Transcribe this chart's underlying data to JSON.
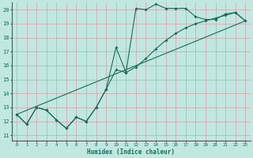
{
  "xlabel": "Humidex (Indice chaleur)",
  "bg_color": "#c0e8e0",
  "grid_color": "#d4a0a8",
  "line_color": "#1a6b5a",
  "xlim": [
    -0.5,
    23.5
  ],
  "ylim": [
    10.6,
    20.5
  ],
  "xticks": [
    0,
    1,
    2,
    3,
    4,
    5,
    6,
    7,
    8,
    9,
    10,
    11,
    12,
    13,
    14,
    15,
    16,
    17,
    18,
    19,
    20,
    21,
    22,
    23
  ],
  "yticks": [
    11,
    12,
    13,
    14,
    15,
    16,
    17,
    18,
    19,
    20
  ],
  "line1_x": [
    0,
    1,
    2,
    3,
    4,
    5,
    6,
    7,
    8,
    9,
    10,
    11,
    12,
    13,
    14,
    15,
    16,
    17,
    18,
    19,
    20,
    21,
    22,
    23
  ],
  "line1_y": [
    12.5,
    11.8,
    13.0,
    12.8,
    12.1,
    11.5,
    12.3,
    12.0,
    13.0,
    14.3,
    17.3,
    15.5,
    20.1,
    20.0,
    20.4,
    20.1,
    20.1,
    20.1,
    19.5,
    19.3,
    19.3,
    19.7,
    19.8,
    19.2
  ],
  "line2_x": [
    0,
    1,
    2,
    3,
    4,
    5,
    6,
    7,
    8,
    9,
    10,
    11,
    12,
    13,
    14,
    15,
    16,
    17,
    18,
    19,
    20,
    21,
    22,
    23
  ],
  "line2_y": [
    12.5,
    11.8,
    13.0,
    12.8,
    12.1,
    11.5,
    12.3,
    12.0,
    13.0,
    14.3,
    15.7,
    15.5,
    15.9,
    16.5,
    17.2,
    17.8,
    18.3,
    18.7,
    19.0,
    19.2,
    19.4,
    19.6,
    19.8,
    19.2
  ],
  "line3_x": [
    0,
    23
  ],
  "line3_y": [
    12.5,
    19.2
  ]
}
